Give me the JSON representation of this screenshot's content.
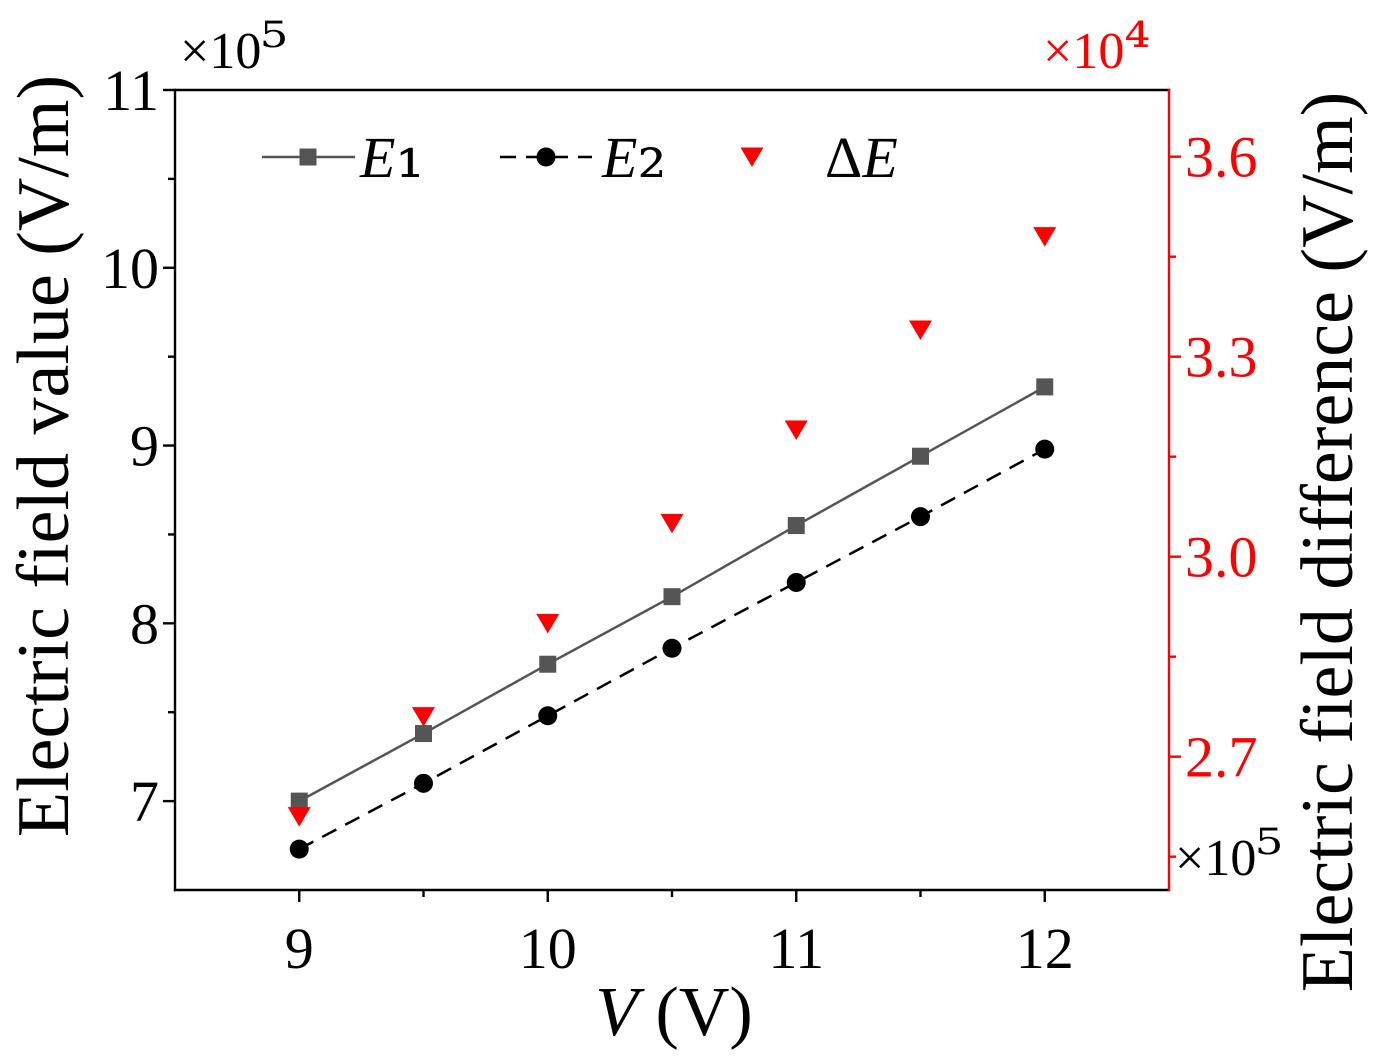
{
  "chart_data": {
    "type": "line",
    "xlabel": "V (V)",
    "ylabel": "Electric field value (V/m)",
    "y2label": "Electric field difference (V/m)",
    "xlim": [
      8.5,
      12.5
    ],
    "ylim": [
      6.5,
      11
    ],
    "y2lim": [
      2.5,
      3.7
    ],
    "xticks": [
      "9",
      "10",
      "11",
      "12"
    ],
    "yticks": [
      "7",
      "8",
      "9",
      "10",
      "11"
    ],
    "y2ticks": [
      "2.7",
      "3.0",
      "3.3",
      "3.6"
    ],
    "y_multiplier": "×10⁵",
    "y2_multiplier": "×10⁴",
    "corner_multiplier": "×10⁵",
    "grid": false,
    "legend_position": "top",
    "axis_color": "#000000",
    "y2_color": "#ff0000",
    "series": [
      {
        "name": "E₁",
        "axis": "left",
        "marker": "square",
        "line": "solid",
        "color": "#555555",
        "x": [
          9,
          9.5,
          10,
          10.5,
          11,
          11.5,
          12
        ],
        "y": [
          7.0,
          7.38,
          7.77,
          8.15,
          8.55,
          8.94,
          9.33
        ]
      },
      {
        "name": "E₂",
        "axis": "left",
        "marker": "circle",
        "line": "dashed",
        "color": "#000000",
        "x": [
          9,
          9.5,
          10,
          10.5,
          11,
          11.5,
          12
        ],
        "y": [
          6.73,
          7.1,
          7.48,
          7.86,
          8.23,
          8.6,
          8.98
        ]
      },
      {
        "name": "ΔE",
        "axis": "right",
        "marker": "triangle-down",
        "line": "none",
        "color": "#ff0000",
        "x": [
          9,
          9.5,
          10,
          10.5,
          11,
          11.5,
          12
        ],
        "y": [
          2.61,
          2.76,
          2.9,
          3.05,
          3.19,
          3.34,
          3.48
        ]
      }
    ]
  }
}
